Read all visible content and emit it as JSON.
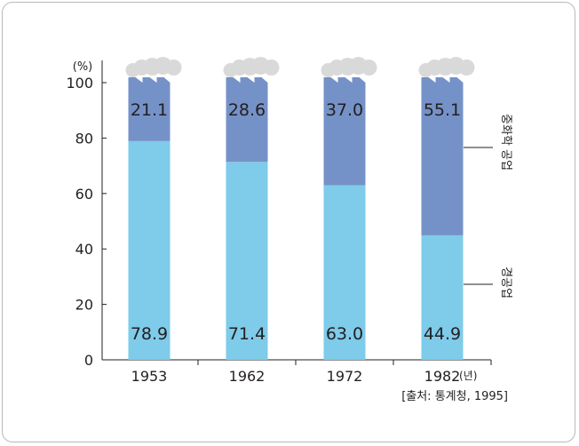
{
  "chart_data": {
    "type": "bar",
    "stacked": true,
    "categories": [
      "1953",
      "1962",
      "1972",
      "1982"
    ],
    "series": [
      {
        "name": "경공업",
        "values": [
          78.9,
          71.4,
          63.0,
          44.9
        ],
        "color": "#7ecbea"
      },
      {
        "name": "중화학 공업",
        "values": [
          21.1,
          28.6,
          37.0,
          55.1
        ],
        "color": "#7592c8"
      }
    ],
    "value_labels": {
      "bottom": [
        "78.9",
        "71.4",
        "63.0",
        "44.9"
      ],
      "top": [
        "21.1",
        "28.6",
        "37.0",
        "55.1"
      ]
    },
    "y_unit": "(%)",
    "x_unit": "(년)",
    "ylim": [
      0,
      100
    ],
    "yticks": [
      0,
      20,
      40,
      60,
      80,
      100
    ],
    "source": "[출처: 통계청, 1995]",
    "legend_placement": "right",
    "grid": false,
    "decoration": "factory-chimney-smoke-icon"
  }
}
